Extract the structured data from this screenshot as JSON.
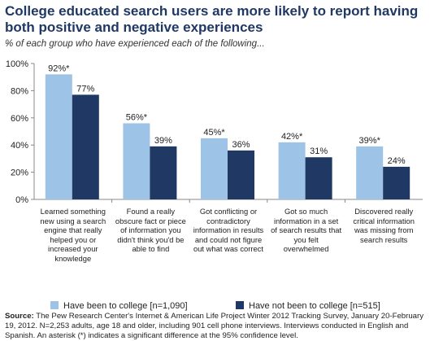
{
  "title": "College educated search users are more likely to report having both positive and negative experiences",
  "subtitle": "% of each group who have experienced each of the following...",
  "colors": {
    "college": "#9dc3e6",
    "not_college": "#1f3864",
    "axis": "#888888",
    "grid": "#cccccc"
  },
  "chart_data": {
    "type": "bar",
    "categories": [
      "Learned something new using a search engine that really helped you or increased your knowledge",
      "Found a really obscure fact or piece of information you didn't think you'd be able to find",
      "Got conflicting or contradictory information in results and could not figure out what was correct",
      "Got so much information in a set of search results that you felt overwhelmed",
      "Discovered really critical information was missing from search results"
    ],
    "series": [
      {
        "name": "Have been to college [n=1,090]",
        "values": [
          92,
          56,
          45,
          42,
          39
        ],
        "labels": [
          "92%*",
          "56%*",
          "45%*",
          "42%*",
          "39%*"
        ]
      },
      {
        "name": "Have not been to college [n=515]",
        "values": [
          77,
          39,
          36,
          31,
          24
        ],
        "labels": [
          "77%",
          "39%",
          "36%",
          "31%",
          "24%"
        ]
      }
    ],
    "ylim": [
      0,
      100
    ],
    "yticks": [
      "0%",
      "20%",
      "40%",
      "60%",
      "80%",
      "100%"
    ],
    "grid": false,
    "legend": "bottom"
  },
  "source": {
    "label": "Source:",
    "text": "The Pew Research Center's Internet & American Life Project Winter 2012 Tracking Survey, January 20-February 19, 2012. N=2,253 adults, age 18 and older, including 901 cell phone interviews. Interviews conducted in English and Spanish. An asterisk (*) indicates a significant difference at the 95% confidence level."
  }
}
